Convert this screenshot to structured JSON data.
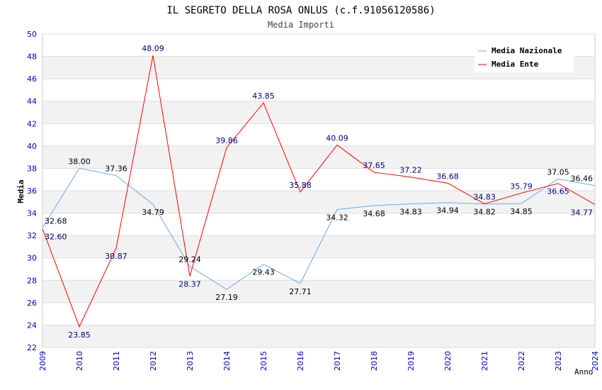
{
  "chart_data": {
    "type": "line",
    "title": "IL SEGRETO DELLA ROSA ONLUS (c.f.91056120586)",
    "subtitle": "Media Importi",
    "xlabel": "Anno",
    "ylabel": "Media",
    "ylim": [
      22,
      50
    ],
    "yticks": [
      "22",
      "24",
      "26",
      "28",
      "30",
      "32",
      "34",
      "36",
      "38",
      "40",
      "42",
      "44",
      "46",
      "48",
      "50"
    ],
    "categories": [
      "2009",
      "2010",
      "2011",
      "2012",
      "2013",
      "2014",
      "2015",
      "2016",
      "2017",
      "2018",
      "2019",
      "2020",
      "2021",
      "2022",
      "2023",
      "2024"
    ],
    "legend_position": "top-right",
    "series": [
      {
        "name": "Media Nazionale",
        "color": "#6aaaf0",
        "label_color": "#000000",
        "values": [
          32.68,
          38.0,
          37.36,
          34.79,
          29.24,
          27.19,
          29.43,
          27.71,
          34.32,
          34.68,
          34.83,
          34.94,
          34.82,
          34.85,
          37.05,
          36.46
        ]
      },
      {
        "name": "Media Ente",
        "color": "#ff0000",
        "label_color": "#000080",
        "values": [
          32.6,
          23.85,
          30.87,
          48.09,
          28.37,
          39.86,
          43.85,
          35.88,
          40.09,
          37.65,
          37.22,
          36.68,
          34.83,
          35.79,
          36.65,
          34.77
        ]
      }
    ]
  }
}
